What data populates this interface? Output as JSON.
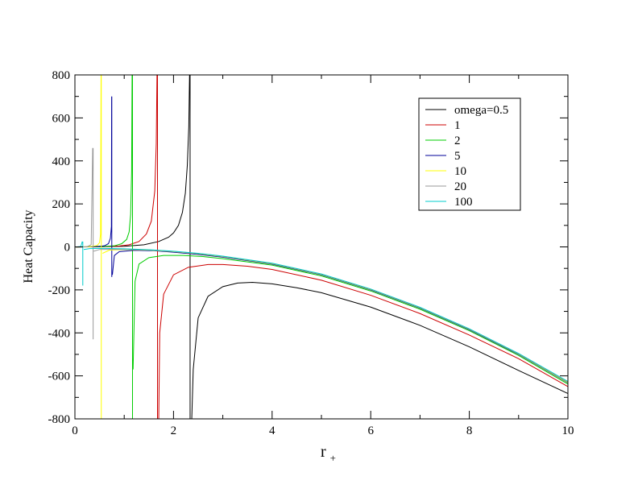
{
  "chart_data": {
    "type": "line",
    "title": "",
    "xlabel": "r",
    "xlabel_subscript": "+",
    "ylabel": "Heat Capacity",
    "xlim": [
      0,
      10
    ],
    "ylim": [
      -800,
      800
    ],
    "x_ticks": [
      0,
      2,
      4,
      6,
      8,
      10
    ],
    "x_tick_labels": [
      "0",
      "2",
      "4",
      "6",
      "8",
      "10"
    ],
    "y_ticks": [
      -800,
      -600,
      -400,
      -200,
      0,
      200,
      400,
      600,
      800
    ],
    "y_tick_labels": [
      "-800",
      "-600",
      "-400",
      "-200",
      "0",
      "200",
      "400",
      "600",
      "800"
    ],
    "grid": false,
    "legend_position": "top-right",
    "series": [
      {
        "name": "omega=0.5",
        "color": "#000000",
        "points": [
          [
            0.02,
            -0.5
          ],
          [
            0.5,
            0.5
          ],
          [
            1.0,
            3
          ],
          [
            1.4,
            10
          ],
          [
            1.7,
            25
          ],
          [
            1.9,
            45
          ],
          [
            2.0,
            65
          ],
          [
            2.1,
            100
          ],
          [
            2.18,
            160
          ],
          [
            2.24,
            250
          ],
          [
            2.28,
            380
          ],
          [
            2.31,
            560
          ],
          [
            2.325,
            800
          ],
          [
            null,
            null
          ],
          [
            2.336,
            800
          ],
          [
            2.336,
            -800
          ],
          [
            null,
            null
          ],
          [
            2.37,
            -800
          ],
          [
            2.4,
            -570
          ],
          [
            2.5,
            -330
          ],
          [
            2.7,
            -230
          ],
          [
            3.0,
            -185
          ],
          [
            3.3,
            -168
          ],
          [
            3.6,
            -165
          ],
          [
            4.0,
            -172
          ],
          [
            4.5,
            -190
          ],
          [
            5.0,
            -213
          ],
          [
            6.0,
            -280
          ],
          [
            7.0,
            -365
          ],
          [
            8.0,
            -465
          ],
          [
            9.0,
            -575
          ],
          [
            10.0,
            -682
          ]
        ]
      },
      {
        "name": "1",
        "color": "#cc0000",
        "points": [
          [
            0.02,
            -0.5
          ],
          [
            0.5,
            1
          ],
          [
            0.9,
            4
          ],
          [
            1.1,
            10
          ],
          [
            1.3,
            25
          ],
          [
            1.45,
            60
          ],
          [
            1.55,
            120
          ],
          [
            1.62,
            260
          ],
          [
            1.65,
            480
          ],
          [
            1.665,
            800
          ],
          [
            null,
            null
          ],
          [
            1.675,
            800
          ],
          [
            1.675,
            -800
          ],
          [
            null,
            null
          ],
          [
            1.7,
            -800
          ],
          [
            1.72,
            -400
          ],
          [
            1.8,
            -220
          ],
          [
            2.0,
            -130
          ],
          [
            2.3,
            -95
          ],
          [
            2.7,
            -82
          ],
          [
            3.0,
            -82
          ],
          [
            3.5,
            -90
          ],
          [
            4.0,
            -105
          ],
          [
            5.0,
            -155
          ],
          [
            6.0,
            -225
          ],
          [
            7.0,
            -310
          ],
          [
            8.0,
            -410
          ],
          [
            9.0,
            -520
          ],
          [
            10.0,
            -650
          ]
        ]
      },
      {
        "name": "2",
        "color": "#00cc00",
        "points": [
          [
            0.02,
            -0.5
          ],
          [
            0.5,
            1
          ],
          [
            0.8,
            5
          ],
          [
            0.95,
            15
          ],
          [
            1.05,
            35
          ],
          [
            1.1,
            70
          ],
          [
            1.13,
            150
          ],
          [
            1.15,
            350
          ],
          [
            1.16,
            800
          ],
          [
            null,
            null
          ],
          [
            1.168,
            800
          ],
          [
            1.168,
            -800
          ],
          [
            null,
            null
          ],
          [
            1.18,
            -570
          ],
          [
            1.22,
            -160
          ],
          [
            1.3,
            -80
          ],
          [
            1.5,
            -50
          ],
          [
            1.8,
            -40
          ],
          [
            2.2,
            -40
          ],
          [
            2.6,
            -45
          ],
          [
            3.0,
            -55
          ],
          [
            4.0,
            -85
          ],
          [
            5.0,
            -135
          ],
          [
            6.0,
            -205
          ],
          [
            7.0,
            -290
          ],
          [
            8.0,
            -390
          ],
          [
            9.0,
            -505
          ],
          [
            10.0,
            -638
          ]
        ]
      },
      {
        "name": "5",
        "color": "#000099",
        "points": [
          [
            0.02,
            -0.5
          ],
          [
            0.4,
            1
          ],
          [
            0.6,
            5
          ],
          [
            0.68,
            15
          ],
          [
            0.72,
            40
          ],
          [
            0.74,
            95
          ],
          [
            0.745,
            700
          ],
          [
            null,
            null
          ],
          [
            0.748,
            700
          ],
          [
            0.748,
            -140
          ],
          [
            null,
            null
          ],
          [
            0.76,
            -130
          ],
          [
            0.8,
            -40
          ],
          [
            0.9,
            -22
          ],
          [
            1.2,
            -16
          ],
          [
            1.6,
            -18
          ],
          [
            2.0,
            -25
          ],
          [
            2.5,
            -35
          ],
          [
            3.0,
            -48
          ],
          [
            4.0,
            -80
          ],
          [
            5.0,
            -130
          ],
          [
            6.0,
            -200
          ],
          [
            7.0,
            -285
          ],
          [
            8.0,
            -385
          ],
          [
            9.0,
            -500
          ],
          [
            10.0,
            -632
          ]
        ]
      },
      {
        "name": "10",
        "color": "#ffff00",
        "points": [
          [
            0.02,
            -0.5
          ],
          [
            0.3,
            1
          ],
          [
            0.45,
            6
          ],
          [
            0.5,
            20
          ],
          [
            0.52,
            60
          ],
          [
            0.53,
            800
          ],
          [
            null,
            null
          ],
          [
            0.535,
            800
          ],
          [
            0.535,
            -800
          ],
          [
            null,
            null
          ],
          [
            0.56,
            -30
          ],
          [
            0.7,
            -15
          ],
          [
            1.0,
            -12
          ],
          [
            1.5,
            -15
          ],
          [
            2.0,
            -22
          ],
          [
            2.5,
            -32
          ],
          [
            3.0,
            -45
          ],
          [
            4.0,
            -78
          ],
          [
            5.0,
            -128
          ],
          [
            6.0,
            -198
          ],
          [
            7.0,
            -283
          ],
          [
            8.0,
            -383
          ],
          [
            9.0,
            -498
          ],
          [
            10.0,
            -630
          ]
        ]
      },
      {
        "name": "20",
        "color": "#999999",
        "points": [
          [
            0.02,
            -0.5
          ],
          [
            0.25,
            1
          ],
          [
            0.33,
            10
          ],
          [
            0.36,
            460
          ],
          [
            null,
            null
          ],
          [
            0.37,
            460
          ],
          [
            0.37,
            -430
          ],
          [
            null,
            null
          ],
          [
            0.38,
            -20
          ],
          [
            0.5,
            -12
          ],
          [
            1.0,
            -11
          ],
          [
            1.5,
            -14
          ],
          [
            2.0,
            -21
          ],
          [
            2.5,
            -31
          ],
          [
            3.0,
            -44
          ],
          [
            4.0,
            -77
          ],
          [
            5.0,
            -127
          ],
          [
            6.0,
            -197
          ],
          [
            7.0,
            -282
          ],
          [
            8.0,
            -382
          ],
          [
            9.0,
            -497
          ],
          [
            10.0,
            -628
          ]
        ]
      },
      {
        "name": "100",
        "color": "#00cccc",
        "points": [
          [
            0.02,
            -0.5
          ],
          [
            0.12,
            2
          ],
          [
            0.15,
            25
          ],
          [
            null,
            null
          ],
          [
            0.16,
            25
          ],
          [
            0.16,
            -180
          ],
          [
            null,
            null
          ],
          [
            0.18,
            -12
          ],
          [
            0.3,
            -8
          ],
          [
            0.6,
            -7
          ],
          [
            1.0,
            -9
          ],
          [
            1.5,
            -13
          ],
          [
            2.0,
            -20
          ],
          [
            2.5,
            -30
          ],
          [
            3.0,
            -43
          ],
          [
            4.0,
            -76
          ],
          [
            5.0,
            -126
          ],
          [
            6.0,
            -196
          ],
          [
            7.0,
            -281
          ],
          [
            8.0,
            -381
          ],
          [
            9.0,
            -496
          ],
          [
            10.0,
            -626
          ]
        ]
      }
    ]
  }
}
